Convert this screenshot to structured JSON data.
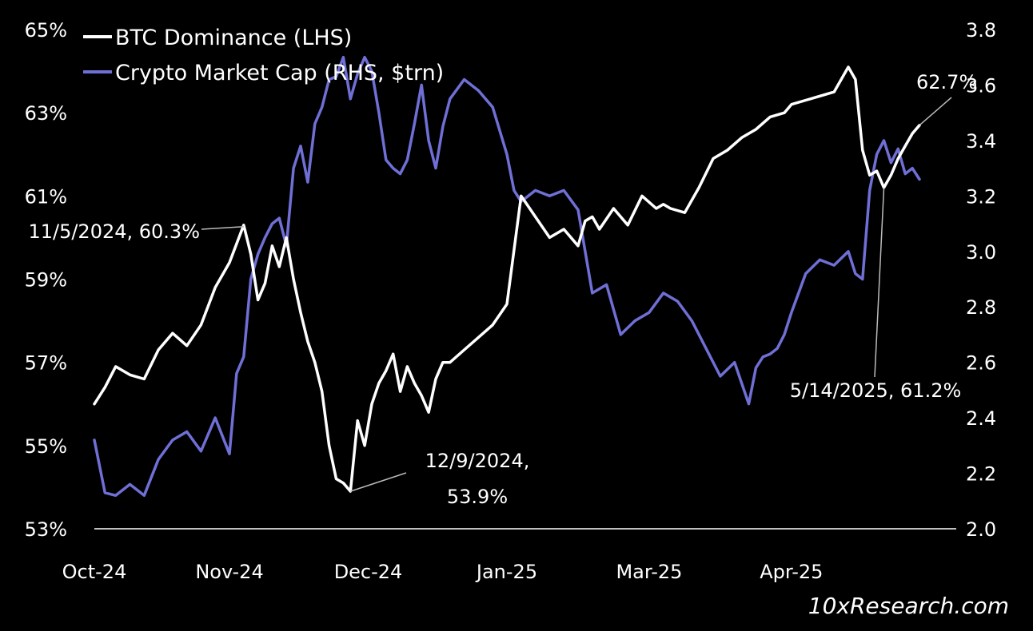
{
  "chart_data": {
    "type": "line",
    "title": "",
    "xlabel": "",
    "ylabel_left": "",
    "ylabel_right": "",
    "colors": {
      "background": "#000000",
      "btc_dominance": "#ffffff",
      "market_cap": "#6f6fd6",
      "axis": "#ffffff",
      "annotation_line": "#bbbbbb"
    },
    "left_axis": {
      "ylim": [
        53,
        65
      ],
      "ticks": [
        53,
        55,
        57,
        59,
        61,
        63,
        65
      ],
      "tick_labels": [
        "53%",
        "55%",
        "57%",
        "59%",
        "61%",
        "63%",
        "65%"
      ]
    },
    "right_axis": {
      "ylim": [
        2.0,
        3.8
      ],
      "ticks": [
        2.0,
        2.2,
        2.4,
        2.6,
        2.8,
        3.0,
        3.2,
        3.4,
        3.6,
        3.8
      ],
      "tick_labels": [
        "2.0",
        "2.2",
        "2.4",
        "2.6",
        "2.8",
        "3.0",
        "3.2",
        "3.4",
        "3.6",
        "3.8"
      ]
    },
    "x_axis": {
      "range": [
        0,
        232
      ],
      "ticks": [
        0,
        38,
        77,
        116,
        156,
        196
      ],
      "tick_labels": [
        "Oct-24",
        "Nov-24",
        "Dec-24",
        "Jan-25",
        "Mar-25",
        "Apr-25"
      ]
    },
    "legend": {
      "position": "top-left",
      "entries": [
        "BTC Dominance (LHS)",
        "Crypto Market Cap (RHS, $trn)"
      ]
    },
    "series": [
      {
        "name": "BTC Dominance (LHS)",
        "axis": "left",
        "x": [
          0,
          3,
          6,
          10,
          14,
          18,
          22,
          26,
          30,
          34,
          38,
          42,
          44,
          46,
          48,
          50,
          52,
          54,
          56,
          58,
          60,
          62,
          64,
          66,
          68,
          70,
          72,
          74,
          76,
          78,
          80,
          82,
          84,
          86,
          88,
          90,
          92,
          94,
          96,
          98,
          100,
          104,
          108,
          112,
          116,
          120,
          124,
          128,
          132,
          136,
          138,
          140,
          142,
          146,
          150,
          154,
          158,
          160,
          162,
          166,
          170,
          174,
          178,
          182,
          186,
          190,
          194,
          196,
          200,
          204,
          208,
          212,
          214,
          216,
          218,
          220,
          222,
          224,
          226,
          228,
          230,
          232
        ],
        "values": [
          56.0,
          56.4,
          56.9,
          56.7,
          56.6,
          57.3,
          57.7,
          57.4,
          57.9,
          58.8,
          59.4,
          60.3,
          59.6,
          58.5,
          58.9,
          59.8,
          59.3,
          60.0,
          59.0,
          58.2,
          57.5,
          57.0,
          56.3,
          55.0,
          54.2,
          54.1,
          53.9,
          55.6,
          55.0,
          56.0,
          56.5,
          56.8,
          57.2,
          56.3,
          56.9,
          56.5,
          56.2,
          55.8,
          56.6,
          57.0,
          57.0,
          57.3,
          57.6,
          57.9,
          58.4,
          61.0,
          60.5,
          60.0,
          60.2,
          59.8,
          60.4,
          60.5,
          60.2,
          60.7,
          60.3,
          61.0,
          60.7,
          60.8,
          60.7,
          60.6,
          61.2,
          61.9,
          62.1,
          62.4,
          62.6,
          62.9,
          63.0,
          63.2,
          63.3,
          63.4,
          63.5,
          64.1,
          63.8,
          62.1,
          61.5,
          61.6,
          61.2,
          61.5,
          61.9,
          62.2,
          62.5,
          62.7
        ]
      },
      {
        "name": "Crypto Market Cap (RHS, $trn)",
        "axis": "right",
        "x": [
          0,
          3,
          6,
          10,
          14,
          18,
          22,
          26,
          30,
          34,
          38,
          40,
          42,
          44,
          46,
          48,
          50,
          52,
          54,
          56,
          58,
          60,
          62,
          64,
          66,
          68,
          70,
          72,
          74,
          76,
          78,
          80,
          82,
          84,
          86,
          88,
          90,
          92,
          94,
          96,
          98,
          100,
          104,
          108,
          112,
          116,
          118,
          120,
          124,
          128,
          132,
          136,
          140,
          144,
          148,
          152,
          156,
          160,
          164,
          168,
          172,
          176,
          180,
          184,
          186,
          188,
          190,
          192,
          194,
          196,
          200,
          204,
          208,
          212,
          214,
          216,
          218,
          220,
          222,
          224,
          226,
          228,
          230,
          232
        ],
        "values": [
          2.32,
          2.13,
          2.12,
          2.16,
          2.12,
          2.25,
          2.32,
          2.35,
          2.28,
          2.4,
          2.27,
          2.56,
          2.62,
          2.9,
          2.99,
          3.05,
          3.1,
          3.12,
          3.02,
          3.3,
          3.38,
          3.25,
          3.46,
          3.52,
          3.62,
          3.63,
          3.7,
          3.55,
          3.64,
          3.7,
          3.65,
          3.5,
          3.33,
          3.3,
          3.28,
          3.33,
          3.46,
          3.6,
          3.4,
          3.3,
          3.45,
          3.55,
          3.62,
          3.58,
          3.52,
          3.35,
          3.22,
          3.18,
          3.22,
          3.2,
          3.22,
          3.15,
          2.85,
          2.88,
          2.7,
          2.75,
          2.78,
          2.85,
          2.82,
          2.75,
          2.65,
          2.55,
          2.6,
          2.45,
          2.58,
          2.62,
          2.63,
          2.65,
          2.7,
          2.78,
          2.92,
          2.97,
          2.95,
          3.0,
          2.92,
          2.9,
          3.22,
          3.35,
          3.4,
          3.32,
          3.37,
          3.28,
          3.3,
          3.26
        ]
      }
    ],
    "annotations": [
      {
        "label": "11/5/2024, 60.3%",
        "x": 42,
        "y": 60.3
      },
      {
        "label_lines": [
          "12/9/2024,",
          "53.9%"
        ],
        "x": 72,
        "y": 53.9
      },
      {
        "label": "62.7%",
        "x": 232,
        "y": 62.7
      },
      {
        "label": "5/14/2025, 61.2%",
        "x": 222,
        "y": 61.2
      }
    ],
    "watermark": "10xResearch.com"
  }
}
